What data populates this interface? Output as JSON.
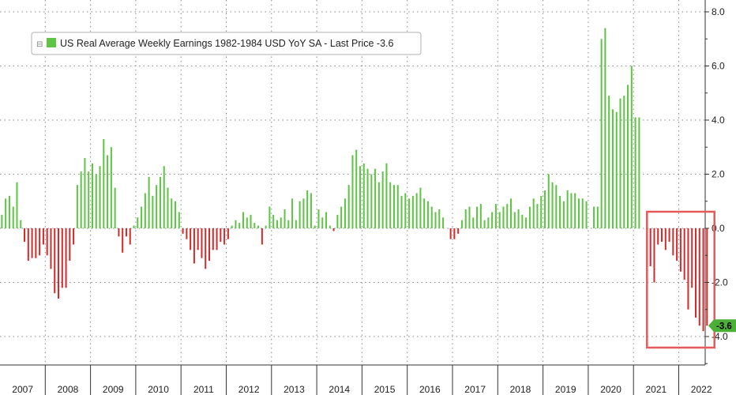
{
  "chart_data": {
    "type": "bar",
    "legend": {
      "marker_text": "⊟",
      "text": "US Real Average Weekly Earnings 1982-1984 USD YoY SA - Last Price -3.6"
    },
    "last_price_label": "-3.6",
    "last_value": -3.6,
    "ylim": [
      -5.2,
      8.6
    ],
    "y_ticks": [
      "8.0",
      "6.0",
      "4.0",
      "2.0",
      "0.0",
      "-2.0",
      "-4.0"
    ],
    "x_year_labels": [
      "2007",
      "2008",
      "2009",
      "2010",
      "2011",
      "2012",
      "2013",
      "2014",
      "2015",
      "2016",
      "2017",
      "2018",
      "2019",
      "2020",
      "2021",
      "2022"
    ],
    "x_start": "2007-01",
    "grid": true,
    "positive_color": "#5ec444",
    "negative_color": "#d42a2a",
    "highlight_box_color": "#e45a5a",
    "highlight_box_range": [
      "2021-05",
      "2022-12"
    ],
    "values": [
      0.5,
      1.1,
      1.2,
      0.8,
      1.7,
      0.3,
      -0.5,
      -1.2,
      -1.1,
      -1.1,
      -1.0,
      -0.6,
      -1.0,
      -1.5,
      -2.4,
      -2.6,
      -2.2,
      -2.2,
      -1.2,
      -0.6,
      1.6,
      2.1,
      2.6,
      2.1,
      2.4,
      2.0,
      2.3,
      3.3,
      2.7,
      3.0,
      1.5,
      -0.3,
      -0.9,
      -0.3,
      -0.6,
      0.1,
      0.4,
      0.8,
      1.3,
      1.9,
      1.2,
      1.6,
      1.9,
      2.3,
      1.5,
      1.1,
      1.0,
      0.6,
      -0.2,
      -0.4,
      -0.8,
      -1.3,
      -0.8,
      -1.1,
      -1.5,
      -1.2,
      -0.8,
      -0.8,
      -0.5,
      -0.6,
      -0.4,
      0.1,
      0.3,
      0.2,
      0.6,
      0.4,
      0.5,
      0.2,
      0.1,
      -0.6,
      0.1,
      0.8,
      0.5,
      0.3,
      0.4,
      0.7,
      0.3,
      1.1,
      0.3,
      1.0,
      1.1,
      1.4,
      1.3,
      0.1,
      0.7,
      0.4,
      0.6,
      0.1,
      -0.1,
      0.5,
      0.8,
      1.1,
      1.6,
      2.7,
      2.9,
      2.3,
      2.4,
      2.2,
      2.0,
      2.2,
      1.7,
      2.1,
      2.4,
      1.7,
      1.6,
      1.6,
      1.2,
      1.3,
      1.1,
      1.2,
      1.3,
      1.5,
      1.1,
      1.0,
      0.8,
      0.6,
      0.7,
      0.4,
      0.0,
      -0.4,
      -0.4,
      -0.2,
      0.3,
      0.7,
      0.8,
      0.4,
      0.8,
      0.9,
      0.3,
      0.4,
      0.6,
      0.9,
      0.6,
      0.8,
      0.9,
      1.1,
      0.6,
      0.7,
      0.5,
      0.4,
      0.8,
      1.1,
      0.9,
      1.2,
      1.4,
      2.0,
      1.7,
      1.6,
      1.2,
      1.0,
      1.4,
      1.3,
      1.3,
      1.1,
      1.1,
      1.0,
      0.0,
      0.8,
      0.8,
      7.0,
      7.4,
      4.9,
      4.4,
      4.3,
      4.8,
      4.9,
      5.3,
      6.0,
      4.1,
      4.1,
      0.0,
      0.0,
      -1.4,
      -2.0,
      -0.6,
      -0.5,
      -0.8,
      -0.5,
      -1.0,
      -1.2,
      -1.6,
      -1.9,
      -3.0,
      -2.2,
      -3.3,
      -3.6,
      -3.8,
      -3.6
    ]
  }
}
